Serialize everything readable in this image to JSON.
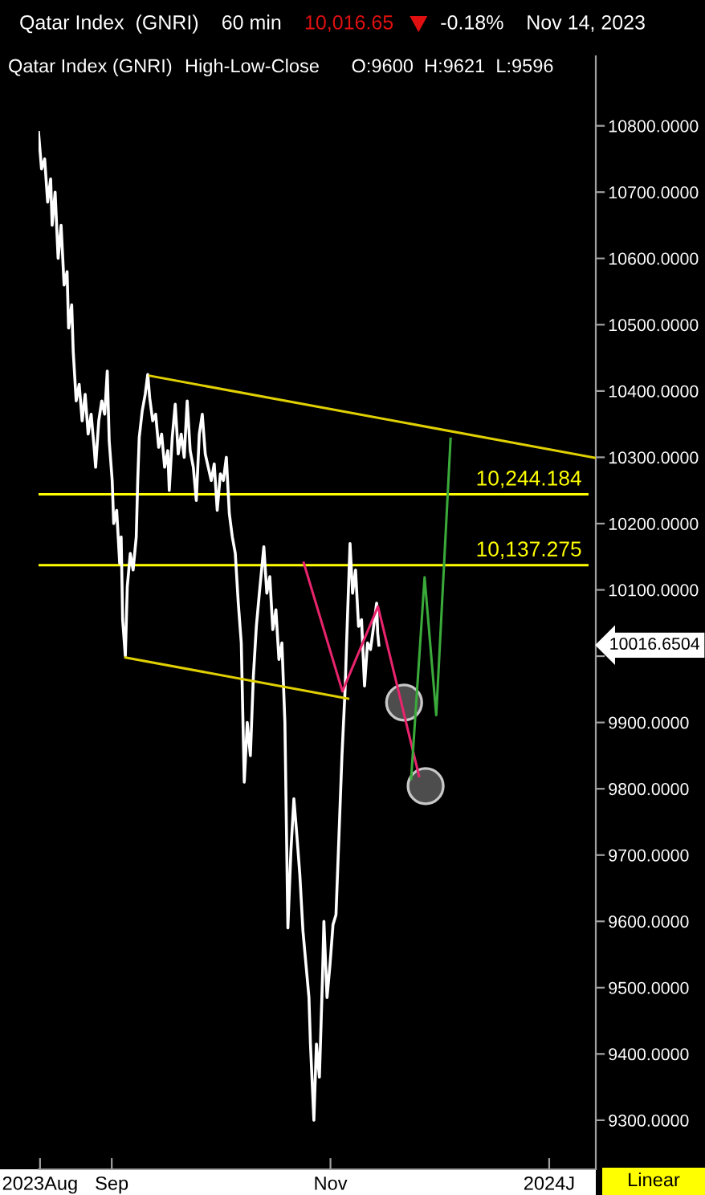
{
  "chart_data": {
    "type": "line",
    "title": "Qatar Index  (GNRI)",
    "subtitle": "60 min",
    "annotations": [
      "10,016.65",
      "-0.18%",
      "Nov 14, 2023",
      "High-Low-Close",
      "O:9600  H:9621  L:9596",
      "Linear",
      "10016.6504"
    ],
    "xlim": [
      "2023-08-11T14:00",
      "2024-01-14"
    ],
    "xticks": [
      {
        "value": "2023-08-12",
        "label": "2023Aug"
      },
      {
        "value": "2023-09-01",
        "label": "Sep"
      },
      {
        "value": "2023-11-01",
        "label": "Nov"
      },
      {
        "value": "2024-01-01",
        "label": "2024J"
      }
    ],
    "ylim": [
      9226,
      10905
    ],
    "yticks": [
      {
        "value": 9300,
        "label": "9300.0000"
      },
      {
        "value": 9400,
        "label": "9400.0000"
      },
      {
        "value": 9500,
        "label": "9500.0000"
      },
      {
        "value": 9600,
        "label": "9600.0000"
      },
      {
        "value": 9700,
        "label": "9700.0000"
      },
      {
        "value": 9800,
        "label": "9800.0000"
      },
      {
        "value": 9900,
        "label": "9900.0000"
      },
      {
        "value": 10000,
        "label": null
      },
      {
        "value": 10100,
        "label": "10100.0000"
      },
      {
        "value": 10200,
        "label": "10200.0000"
      },
      {
        "value": 10300,
        "label": "10300.0000"
      },
      {
        "value": 10400,
        "label": "10400.0000"
      },
      {
        "value": 10500,
        "label": "10500.0000"
      },
      {
        "value": 10600,
        "label": "10600.0000"
      },
      {
        "value": 10700,
        "label": "10700.0000"
      },
      {
        "value": 10800,
        "label": "10800.0000"
      }
    ],
    "ref_lines": [
      {
        "axis": "y",
        "value": 10244.184,
        "label": "10,244.184",
        "color": "#ffff00"
      },
      {
        "axis": "y",
        "value": 10137.275,
        "label": "10,137.275",
        "color": "#ffff00"
      }
    ],
    "series": [
      {
        "name": "Qatar Index (GNRI)",
        "color": "#ffffff",
        "x": [
          "2023-08-11T14:00",
          "2023-08-12T10:00",
          "2023-08-13T07:00",
          "2023-08-14T03:00",
          "2023-08-14T23:00",
          "2023-08-15T09:00",
          "2023-08-16T05:00",
          "2023-08-17T01:00",
          "2023-08-17T21:00",
          "2023-08-18T17:00",
          "2023-08-19T13:00",
          "2023-08-19T23:00",
          "2023-08-20T20:00",
          "2023-08-21T06:00",
          "2023-08-22T02:00",
          "2023-08-22T22:00",
          "2023-08-23T18:00",
          "2023-08-24T14:00",
          "2023-08-25T10:00",
          "2023-08-26T06:00",
          "2023-08-27T02:00",
          "2023-08-27T12:00",
          "2023-08-28T09:00",
          "2023-08-29T05:00",
          "2023-08-30T01:00",
          "2023-08-30T18:00",
          "2023-08-31T07:00",
          "2023-09-01T03:00",
          "2023-09-01T13:00",
          "2023-09-02T09:00",
          "2023-09-03T05:00",
          "2023-09-03T15:00",
          "2023-09-04T01:00",
          "2023-09-04T19:00",
          "2023-09-05T08:00",
          "2023-09-06T04:00",
          "2023-09-06T23:00",
          "2023-09-07T20:00",
          "2023-09-08T06:00",
          "2023-09-08T16:00",
          "2023-09-09T12:00",
          "2023-09-10T08:00",
          "2023-09-11T01:00",
          "2023-09-11T14:00",
          "2023-09-12T10:00",
          "2023-09-13T06:00",
          "2023-09-14T02:00",
          "2023-09-14T22:00",
          "2023-09-15T18:00",
          "2023-09-16T15:00",
          "2023-09-17T01:00",
          "2023-09-17T21:00",
          "2023-09-18T17:00",
          "2023-09-19T13:00",
          "2023-09-20T09:00",
          "2023-09-21T05:00",
          "2023-09-22T01:00",
          "2023-09-22T21:00",
          "2023-09-23T18:00",
          "2023-09-24T14:00",
          "2023-09-25T10:00",
          "2023-09-26T06:00",
          "2023-09-27T02:00",
          "2023-09-27T22:00",
          "2023-09-28T18:00",
          "2023-09-29T14:00",
          "2023-09-30T10:00",
          "2023-10-01T07:00",
          "2023-10-02T03:00",
          "2023-10-02T23:00",
          "2023-10-03T19:00",
          "2023-10-04T15:00",
          "2023-10-05T11:00",
          "2023-10-06T07:00",
          "2023-10-07T03:00",
          "2023-10-07T23:00",
          "2023-10-08T19:00",
          "2023-10-09T16:00",
          "2023-10-10T12:00",
          "2023-10-11T08:00",
          "2023-10-12T04:00",
          "2023-10-13T10:00",
          "2023-10-14T06:00",
          "2023-10-15T02:00",
          "2023-10-15T22:00",
          "2023-10-16T19:00",
          "2023-10-17T15:00",
          "2023-10-18T11:00",
          "2023-10-19T07:00",
          "2023-10-20T03:00",
          "2023-10-20T23:00",
          "2023-10-21T19:00",
          "2023-10-22T15:00",
          "2023-10-23T11:00",
          "2023-10-24T08:00",
          "2023-10-25T04:00",
          "2023-10-26T00:00",
          "2023-10-26T10:00",
          "2023-10-27T09:00",
          "2023-10-28T02:00",
          "2023-10-28T22:00",
          "2023-10-29T18:00",
          "2023-10-30T04:00",
          "2023-10-31T01:00",
          "2023-10-31T21:00",
          "2023-11-01T17:00",
          "2023-11-02T13:00",
          "2023-11-03T09:00",
          "2023-11-04T05:00",
          "2023-11-05T02:00",
          "2023-11-05T12:00",
          "2023-11-06T11:00",
          "2023-11-07T04:00",
          "2023-11-08T00:00",
          "2023-11-08T20:00",
          "2023-11-09T16:00",
          "2023-11-10T12:00",
          "2023-11-11T08:00",
          "2023-11-12T04:00",
          "2023-11-13T01:00",
          "2023-11-13T21:00",
          "2023-11-14T04:00",
          "2023-11-14T12:00"
        ],
        "values": [
          10790,
          10735,
          10750,
          10685,
          10720,
          10650,
          10700,
          10600,
          10650,
          10560,
          10580,
          10495,
          10530,
          10460,
          10385,
          10410,
          10355,
          10395,
          10335,
          10365,
          10315,
          10285,
          10355,
          10385,
          10365,
          10430,
          10325,
          10265,
          10200,
          10220,
          10140,
          10180,
          10055,
          10000,
          10105,
          10155,
          10130,
          10180,
          10265,
          10330,
          10370,
          10395,
          10425,
          10390,
          10355,
          10365,
          10315,
          10335,
          10285,
          10310,
          10250,
          10330,
          10380,
          10305,
          10335,
          10300,
          10385,
          10310,
          10285,
          10235,
          10335,
          10365,
          10305,
          10285,
          10265,
          10290,
          10220,
          10275,
          10265,
          10300,
          10215,
          10180,
          10155,
          10080,
          10020,
          9810,
          9900,
          9850,
          9970,
          10045,
          10095,
          10165,
          10095,
          10120,
          10040,
          10070,
          9995,
          10020,
          9900,
          9590,
          9705,
          9785,
          9730,
          9670,
          9585,
          9535,
          9485,
          9415,
          9300,
          9415,
          9365,
          9510,
          9600,
          9485,
          9535,
          9595,
          9610,
          9730,
          9850,
          9950,
          10020,
          10170,
          10095,
          10130,
          10045,
          10055,
          9955,
          10020,
          10010,
          10045,
          10080,
          10035,
          10016.65
        ]
      },
      {
        "type": "line",
        "color": "#e0d000",
        "x": [
          "2023-09-11T14:00",
          "2024-01-14"
        ],
        "values": [
          10423,
          10299
        ]
      },
      {
        "type": "line",
        "color": "#e0d000",
        "x": [
          "2023-09-04T20:00",
          "2023-11-05T22:00"
        ],
        "values": [
          9998,
          9936
        ]
      },
      {
        "type": "line",
        "color": "#e8246c",
        "x": [
          "2023-10-24T13:00",
          "2023-11-04T08:00",
          "2023-11-14T06:00",
          "2023-11-25T17:00"
        ],
        "values": [
          10141,
          9947,
          10075,
          9819
        ]
      },
      {
        "type": "line",
        "color": "#3aaa3a",
        "x": [
          "2023-11-23T12:00",
          "2023-11-27T06:00",
          "2023-11-30T12:00",
          "2023-12-04T12:00"
        ],
        "values": [
          9815,
          10119,
          9911,
          10328
        ]
      },
      {
        "type": "scatter",
        "color": "#4d4d4d",
        "marker": "circle",
        "x": [
          "2023-11-21T13:00",
          "2023-11-27T13:00"
        ],
        "values": [
          9930,
          9804
        ]
      }
    ]
  }
}
